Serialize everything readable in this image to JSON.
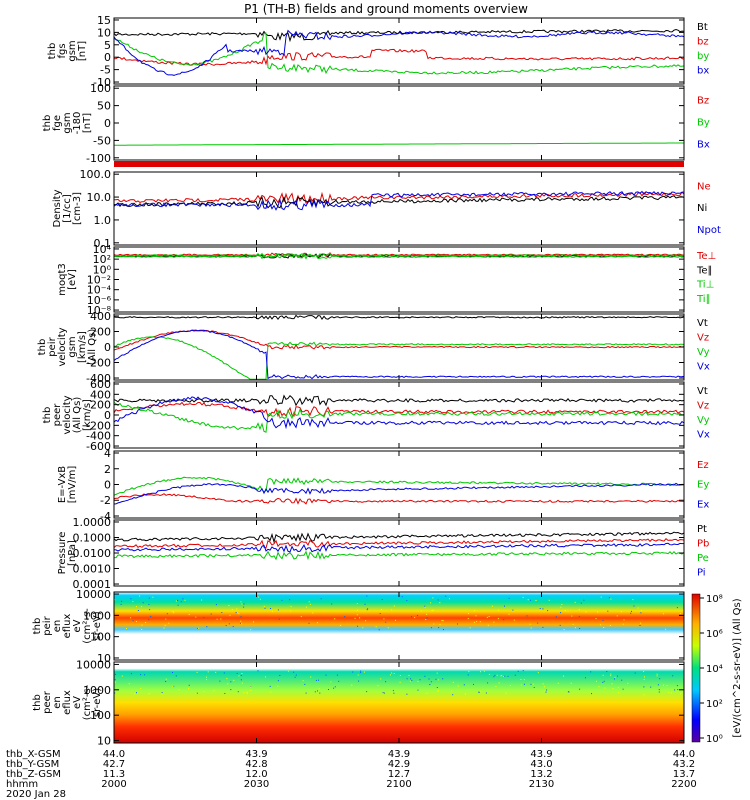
{
  "title": "P1 (TH-B) fields and ground moments overview",
  "colors": {
    "black": "#000000",
    "red": "#e00000",
    "green": "#00c800",
    "blue": "#0000e0"
  },
  "chart_data": [
    {
      "type": "line",
      "ylabel": [
        "thb",
        "fgs",
        "gsm",
        "[nT]"
      ],
      "yticks": [
        "15",
        "10",
        "5",
        "0",
        "-5",
        "-10"
      ],
      "legend": [
        {
          "name": "Bt",
          "color": "black"
        },
        {
          "name": "bz",
          "color": "red"
        },
        {
          "name": "by",
          "color": "green"
        },
        {
          "name": "bx",
          "color": "blue"
        }
      ],
      "ylim": [
        -10,
        15
      ]
    },
    {
      "type": "line",
      "ylabel": [
        "thb",
        "fge",
        "gsm",
        "-180",
        "[nT]"
      ],
      "yticks": [
        "100",
        "50",
        "0",
        "-50",
        "-100"
      ],
      "legend": [
        {
          "name": "Bz",
          "color": "red"
        },
        {
          "name": "By",
          "color": "green"
        },
        {
          "name": "Bx",
          "color": "blue"
        }
      ],
      "ylim": [
        -130,
        100
      ]
    },
    {
      "type": "line",
      "ylabel": [
        "Density",
        "[1/cc]",
        "[cm-3]"
      ],
      "yticks": [
        "100.0",
        "10.0",
        "1.0",
        "0.1"
      ],
      "legend": [
        {
          "name": "Ne",
          "color": "red"
        },
        {
          "name": "Ni",
          "color": "black"
        },
        {
          "name": "Npot",
          "color": "blue"
        }
      ],
      "scale": "log"
    },
    {
      "type": "line",
      "ylabel": [
        "moqt3",
        "[eV]"
      ],
      "yticks": [
        "10⁴",
        "10²",
        "10⁰",
        "10⁻²",
        "10⁻⁴",
        "10⁻⁶",
        "10⁻⁸"
      ],
      "legend": [
        {
          "name": "Te⊥",
          "color": "red"
        },
        {
          "name": "Te∥",
          "color": "black"
        },
        {
          "name": "Ti⊥",
          "color": "green"
        },
        {
          "name": "Ti∥",
          "color": "green"
        }
      ],
      "scale": "log"
    },
    {
      "type": "line",
      "ylabel": [
        "thb",
        "peir",
        "velocity",
        "gsm",
        "[km/s]",
        "(All Qs)"
      ],
      "yticks": [
        "400",
        "200",
        "0",
        "-200",
        "-400"
      ],
      "legend": [
        {
          "name": "Vt",
          "color": "black"
        },
        {
          "name": "Vz",
          "color": "red"
        },
        {
          "name": "Vy",
          "color": "green"
        },
        {
          "name": "Vx",
          "color": "blue"
        }
      ],
      "ylim": [
        -400,
        400
      ]
    },
    {
      "type": "line",
      "ylabel": [
        "thb",
        "peer",
        "velocity",
        "(All Qs)",
        "[km/s]"
      ],
      "yticks": [
        "600",
        "400",
        "200",
        "0",
        "-200",
        "-400",
        "-600"
      ],
      "legend": [
        {
          "name": "Vt",
          "color": "black"
        },
        {
          "name": "Vz",
          "color": "red"
        },
        {
          "name": "Vy",
          "color": "green"
        },
        {
          "name": "Vx",
          "color": "blue"
        }
      ],
      "ylim": [
        -600,
        600
      ]
    },
    {
      "type": "line",
      "ylabel": [
        "E=-VxB",
        "[mV/m]"
      ],
      "yticks": [
        "4",
        "2",
        "0",
        "-2",
        "-4"
      ],
      "legend": [
        {
          "name": "Ez",
          "color": "red"
        },
        {
          "name": "Ey",
          "color": "green"
        },
        {
          "name": "Ex",
          "color": "blue"
        }
      ],
      "ylim": [
        -4,
        4
      ]
    },
    {
      "type": "line",
      "ylabel": [
        "Pressure",
        "[nPa]"
      ],
      "yticks": [
        "1.0000",
        "0.1000",
        "0.0100",
        "0.0010",
        "0.0001"
      ],
      "legend": [
        {
          "name": "Pt",
          "color": "black"
        },
        {
          "name": "Pb",
          "color": "red"
        },
        {
          "name": "Pe",
          "color": "green"
        },
        {
          "name": "Pi",
          "color": "blue"
        }
      ],
      "scale": "log"
    },
    {
      "type": "heatmap",
      "ylabel": [
        "thb",
        "peir",
        "en",
        "eflux",
        "eV",
        "(cm²-s-",
        "sr-eV)"
      ],
      "yticks": [
        "10000",
        "1000",
        "100",
        "10"
      ]
    },
    {
      "type": "heatmap",
      "ylabel": [
        "thb",
        "peer",
        "en",
        "eflux",
        "eV",
        "(cm²-s-",
        "sr-eV)"
      ],
      "yticks": [
        "10000",
        "1000",
        "100",
        "10"
      ]
    }
  ],
  "colorbar": {
    "ticks": [
      "10⁸",
      "10⁶",
      "10⁴",
      "10²",
      "10⁰"
    ],
    "label": "[eV/(cm^2-s-sr-eV)] (All Qs)"
  },
  "xaxis": {
    "rows": [
      {
        "label": "thb_X-GSM",
        "values": [
          "44.0",
          "43.9",
          "43.9",
          "43.9",
          "44.0"
        ]
      },
      {
        "label": "thb_Y-GSM",
        "values": [
          "42.7",
          "42.8",
          "42.9",
          "43.0",
          "43.2"
        ]
      },
      {
        "label": "thb_Z-GSM",
        "values": [
          "11.3",
          "12.0",
          "12.7",
          "13.2",
          "13.7"
        ]
      },
      {
        "label": "hhmm",
        "values": [
          "2000",
          "2030",
          "2100",
          "2130",
          "2200"
        ]
      }
    ],
    "date": "2020 Jan 28"
  }
}
